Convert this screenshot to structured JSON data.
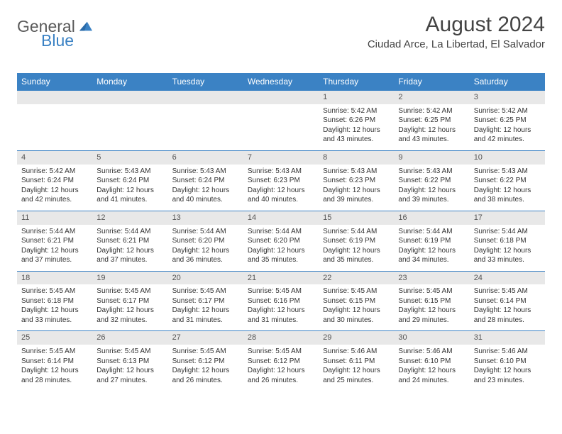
{
  "logo": {
    "text_gray": "General",
    "text_blue": "Blue"
  },
  "title": "August 2024",
  "location": "Ciudad Arce, La Libertad, El Salvador",
  "colors": {
    "header_bg": "#3b82c4",
    "header_text": "#ffffff",
    "daynum_bg": "#e8e8e8",
    "border": "#3b82c4",
    "body_text": "#333333",
    "logo_gray": "#5a5a5a",
    "logo_blue": "#3b82c4"
  },
  "weekdays": [
    "Sunday",
    "Monday",
    "Tuesday",
    "Wednesday",
    "Thursday",
    "Friday",
    "Saturday"
  ],
  "weeks": [
    [
      null,
      null,
      null,
      null,
      {
        "n": "1",
        "sr": "5:42 AM",
        "ss": "6:26 PM",
        "dl": "12 hours and 43 minutes."
      },
      {
        "n": "2",
        "sr": "5:42 AM",
        "ss": "6:25 PM",
        "dl": "12 hours and 43 minutes."
      },
      {
        "n": "3",
        "sr": "5:42 AM",
        "ss": "6:25 PM",
        "dl": "12 hours and 42 minutes."
      }
    ],
    [
      {
        "n": "4",
        "sr": "5:42 AM",
        "ss": "6:24 PM",
        "dl": "12 hours and 42 minutes."
      },
      {
        "n": "5",
        "sr": "5:43 AM",
        "ss": "6:24 PM",
        "dl": "12 hours and 41 minutes."
      },
      {
        "n": "6",
        "sr": "5:43 AM",
        "ss": "6:24 PM",
        "dl": "12 hours and 40 minutes."
      },
      {
        "n": "7",
        "sr": "5:43 AM",
        "ss": "6:23 PM",
        "dl": "12 hours and 40 minutes."
      },
      {
        "n": "8",
        "sr": "5:43 AM",
        "ss": "6:23 PM",
        "dl": "12 hours and 39 minutes."
      },
      {
        "n": "9",
        "sr": "5:43 AM",
        "ss": "6:22 PM",
        "dl": "12 hours and 39 minutes."
      },
      {
        "n": "10",
        "sr": "5:43 AM",
        "ss": "6:22 PM",
        "dl": "12 hours and 38 minutes."
      }
    ],
    [
      {
        "n": "11",
        "sr": "5:44 AM",
        "ss": "6:21 PM",
        "dl": "12 hours and 37 minutes."
      },
      {
        "n": "12",
        "sr": "5:44 AM",
        "ss": "6:21 PM",
        "dl": "12 hours and 37 minutes."
      },
      {
        "n": "13",
        "sr": "5:44 AM",
        "ss": "6:20 PM",
        "dl": "12 hours and 36 minutes."
      },
      {
        "n": "14",
        "sr": "5:44 AM",
        "ss": "6:20 PM",
        "dl": "12 hours and 35 minutes."
      },
      {
        "n": "15",
        "sr": "5:44 AM",
        "ss": "6:19 PM",
        "dl": "12 hours and 35 minutes."
      },
      {
        "n": "16",
        "sr": "5:44 AM",
        "ss": "6:19 PM",
        "dl": "12 hours and 34 minutes."
      },
      {
        "n": "17",
        "sr": "5:44 AM",
        "ss": "6:18 PM",
        "dl": "12 hours and 33 minutes."
      }
    ],
    [
      {
        "n": "18",
        "sr": "5:45 AM",
        "ss": "6:18 PM",
        "dl": "12 hours and 33 minutes."
      },
      {
        "n": "19",
        "sr": "5:45 AM",
        "ss": "6:17 PM",
        "dl": "12 hours and 32 minutes."
      },
      {
        "n": "20",
        "sr": "5:45 AM",
        "ss": "6:17 PM",
        "dl": "12 hours and 31 minutes."
      },
      {
        "n": "21",
        "sr": "5:45 AM",
        "ss": "6:16 PM",
        "dl": "12 hours and 31 minutes."
      },
      {
        "n": "22",
        "sr": "5:45 AM",
        "ss": "6:15 PM",
        "dl": "12 hours and 30 minutes."
      },
      {
        "n": "23",
        "sr": "5:45 AM",
        "ss": "6:15 PM",
        "dl": "12 hours and 29 minutes."
      },
      {
        "n": "24",
        "sr": "5:45 AM",
        "ss": "6:14 PM",
        "dl": "12 hours and 28 minutes."
      }
    ],
    [
      {
        "n": "25",
        "sr": "5:45 AM",
        "ss": "6:14 PM",
        "dl": "12 hours and 28 minutes."
      },
      {
        "n": "26",
        "sr": "5:45 AM",
        "ss": "6:13 PM",
        "dl": "12 hours and 27 minutes."
      },
      {
        "n": "27",
        "sr": "5:45 AM",
        "ss": "6:12 PM",
        "dl": "12 hours and 26 minutes."
      },
      {
        "n": "28",
        "sr": "5:45 AM",
        "ss": "6:12 PM",
        "dl": "12 hours and 26 minutes."
      },
      {
        "n": "29",
        "sr": "5:46 AM",
        "ss": "6:11 PM",
        "dl": "12 hours and 25 minutes."
      },
      {
        "n": "30",
        "sr": "5:46 AM",
        "ss": "6:10 PM",
        "dl": "12 hours and 24 minutes."
      },
      {
        "n": "31",
        "sr": "5:46 AM",
        "ss": "6:10 PM",
        "dl": "12 hours and 23 minutes."
      }
    ]
  ],
  "labels": {
    "sunrise": "Sunrise:",
    "sunset": "Sunset:",
    "daylight": "Daylight:"
  }
}
